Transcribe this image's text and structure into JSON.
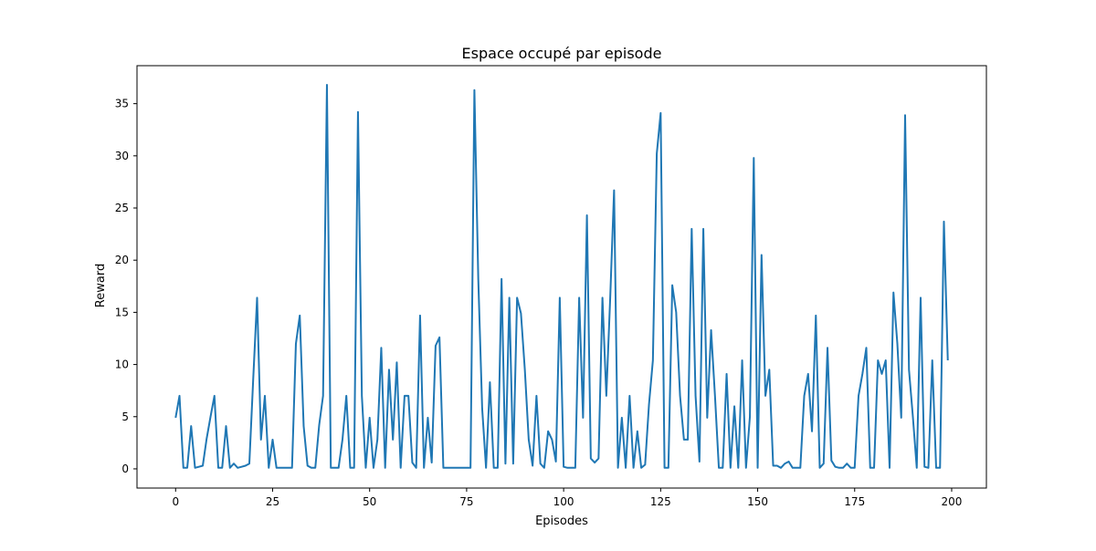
{
  "chart_data": {
    "type": "line",
    "title": "Espace occupé par episode",
    "xlabel": "Episodes",
    "ylabel": "Reward",
    "xlim": [
      -9.95,
      208.95
    ],
    "ylim": [
      -1.84,
      38.64
    ],
    "xticks": [
      0,
      25,
      50,
      75,
      100,
      125,
      150,
      175,
      200
    ],
    "yticks": [
      0,
      5,
      10,
      15,
      20,
      25,
      30,
      35
    ],
    "grid": false,
    "legend": "none",
    "series": [
      {
        "color": "#1f77b4",
        "x": [
          0,
          1,
          2,
          3,
          4,
          5,
          6,
          7,
          8,
          9,
          10,
          11,
          12,
          13,
          14,
          15,
          16,
          17,
          18,
          19,
          20,
          21,
          22,
          23,
          24,
          25,
          26,
          27,
          28,
          29,
          30,
          31,
          32,
          33,
          34,
          35,
          36,
          37,
          38,
          39,
          40,
          41,
          42,
          43,
          44,
          45,
          46,
          47,
          48,
          49,
          50,
          51,
          52,
          53,
          54,
          55,
          56,
          57,
          58,
          59,
          60,
          61,
          62,
          63,
          64,
          65,
          66,
          67,
          68,
          69,
          70,
          71,
          72,
          73,
          74,
          75,
          76,
          77,
          78,
          79,
          80,
          81,
          82,
          83,
          84,
          85,
          86,
          87,
          88,
          89,
          90,
          91,
          92,
          93,
          94,
          95,
          96,
          97,
          98,
          99,
          100,
          101,
          102,
          103,
          104,
          105,
          106,
          107,
          108,
          109,
          110,
          111,
          112,
          113,
          114,
          115,
          116,
          117,
          118,
          119,
          120,
          121,
          122,
          123,
          124,
          125,
          126,
          127,
          128,
          129,
          130,
          131,
          132,
          133,
          134,
          135,
          136,
          137,
          138,
          139,
          140,
          141,
          142,
          143,
          144,
          145,
          146,
          147,
          148,
          149,
          150,
          151,
          152,
          153,
          154,
          155,
          156,
          157,
          158,
          159,
          160,
          161,
          162,
          163,
          164,
          165,
          166,
          167,
          168,
          169,
          170,
          171,
          172,
          173,
          174,
          175,
          176,
          177,
          178,
          179,
          180,
          181,
          182,
          183,
          184,
          185,
          186,
          187,
          188,
          189,
          190,
          191,
          192,
          193,
          194,
          195,
          196,
          197,
          198,
          199
        ],
        "values": [
          4.9,
          7.0,
          0.1,
          0.1,
          4.1,
          0.1,
          0.2,
          0.3,
          2.9,
          5.0,
          7.0,
          0.1,
          0.1,
          4.1,
          0.1,
          0.5,
          0.1,
          0.2,
          0.3,
          0.5,
          8.6,
          16.4,
          2.8,
          7.0,
          0.1,
          2.8,
          0.1,
          0.1,
          0.1,
          0.1,
          0.1,
          12.0,
          14.7,
          4.1,
          0.3,
          0.1,
          0.1,
          4.2,
          7.0,
          36.8,
          0.1,
          0.1,
          0.1,
          2.8,
          7.0,
          0.1,
          0.1,
          34.2,
          7.0,
          0.1,
          4.9,
          0.1,
          2.8,
          11.6,
          0.1,
          9.5,
          2.8,
          10.2,
          0.1,
          7.0,
          7.0,
          0.6,
          0.1,
          14.7,
          0.1,
          4.9,
          0.6,
          11.8,
          12.6,
          0.1,
          0.1,
          0.1,
          0.1,
          0.1,
          0.1,
          0.1,
          0.1,
          36.3,
          18.2,
          5.8,
          0.1,
          8.3,
          0.1,
          0.1,
          18.2,
          0.5,
          16.4,
          0.5,
          16.4,
          14.9,
          9.5,
          2.8,
          0.3,
          7.0,
          0.5,
          0.1,
          3.6,
          2.8,
          0.7,
          16.4,
          0.2,
          0.1,
          0.1,
          0.1,
          16.4,
          4.9,
          24.3,
          1.0,
          0.6,
          1.0,
          16.4,
          7.0,
          16.4,
          26.7,
          0.1,
          4.9,
          0.1,
          7.0,
          0.1,
          3.6,
          0.1,
          0.4,
          6.2,
          10.4,
          30.2,
          34.1,
          0.1,
          0.1,
          17.6,
          15.0,
          7.0,
          2.8,
          2.8,
          23.0,
          7.0,
          0.7,
          23.0,
          4.9,
          13.3,
          7.0,
          0.1,
          0.1,
          9.1,
          0.1,
          6.0,
          0.1,
          10.4,
          0.1,
          5.0,
          29.8,
          0.1,
          20.5,
          7.0,
          9.5,
          0.3,
          0.3,
          0.1,
          0.5,
          0.7,
          0.1,
          0.1,
          0.1,
          7.0,
          9.1,
          3.6,
          14.7,
          0.1,
          0.5,
          11.6,
          0.8,
          0.2,
          0.1,
          0.1,
          0.5,
          0.1,
          0.1,
          7.0,
          9.1,
          11.6,
          0.1,
          0.1,
          10.4,
          9.1,
          10.4,
          0.1,
          16.9,
          12.0,
          4.9,
          33.9,
          9.5,
          5.0,
          0.1,
          16.4,
          0.2,
          0.1,
          10.4,
          0.1,
          0.1,
          23.7,
          10.4
        ]
      }
    ]
  }
}
